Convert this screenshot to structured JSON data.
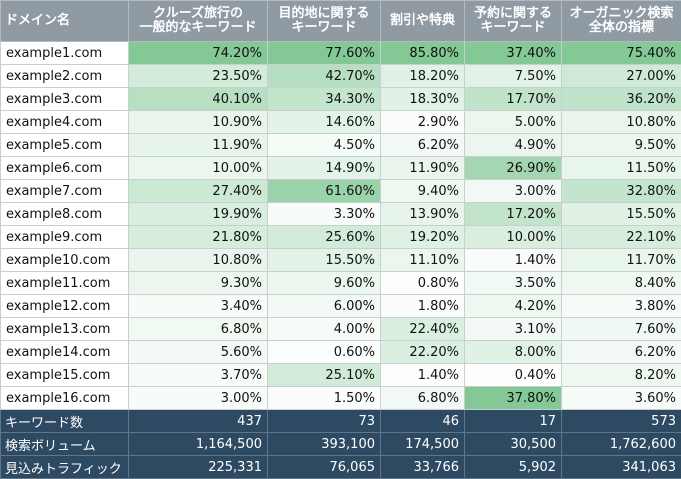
{
  "headers": [
    {
      "line1": "ドメイン名",
      "line2": ""
    },
    {
      "line1": "クルーズ旅行の",
      "line2": "一般的なキーワード"
    },
    {
      "line1": "目的地に関する",
      "line2": "キーワード"
    },
    {
      "line1": "割引や特典",
      "line2": ""
    },
    {
      "line1": "予約に関する",
      "line2": "キーワード"
    },
    {
      "line1": "オーガニック検索",
      "line2": "全体の指標"
    }
  ],
  "rows": [
    {
      "domain": "example1.com",
      "values": [
        "74.20%",
        "77.60%",
        "85.80%",
        "37.40%",
        "75.40%"
      ]
    },
    {
      "domain": "example2.com",
      "values": [
        "23.50%",
        "42.70%",
        "18.20%",
        "7.50%",
        "27.00%"
      ]
    },
    {
      "domain": "example3.com",
      "values": [
        "40.10%",
        "34.30%",
        "18.30%",
        "17.70%",
        "36.20%"
      ]
    },
    {
      "domain": "example4.com",
      "values": [
        "10.90%",
        "14.60%",
        "2.90%",
        "5.00%",
        "10.80%"
      ]
    },
    {
      "domain": "example5.com",
      "values": [
        "11.90%",
        "4.50%",
        "6.20%",
        "4.90%",
        "9.50%"
      ]
    },
    {
      "domain": "example6.com",
      "values": [
        "10.00%",
        "14.90%",
        "11.90%",
        "26.90%",
        "11.50%"
      ]
    },
    {
      "domain": "example7.com",
      "values": [
        "27.40%",
        "61.60%",
        "9.40%",
        "3.00%",
        "32.80%"
      ]
    },
    {
      "domain": "example8.com",
      "values": [
        "19.90%",
        "3.30%",
        "13.90%",
        "17.20%",
        "15.50%"
      ]
    },
    {
      "domain": "example9.com",
      "values": [
        "21.80%",
        "25.60%",
        "19.20%",
        "10.00%",
        "22.10%"
      ]
    },
    {
      "domain": "example10.com",
      "values": [
        "10.80%",
        "15.50%",
        "11.10%",
        "1.40%",
        "11.70%"
      ]
    },
    {
      "domain": "example11.com",
      "values": [
        "9.30%",
        "9.60%",
        "0.80%",
        "3.50%",
        "8.40%"
      ]
    },
    {
      "domain": "example12.com",
      "values": [
        "3.40%",
        "6.00%",
        "1.80%",
        "4.20%",
        "3.80%"
      ]
    },
    {
      "domain": "example13.com",
      "values": [
        "6.80%",
        "4.00%",
        "22.40%",
        "3.10%",
        "7.60%"
      ]
    },
    {
      "domain": "example14.com",
      "values": [
        "5.60%",
        "0.60%",
        "22.20%",
        "8.00%",
        "6.20%"
      ]
    },
    {
      "domain": "example15.com",
      "values": [
        "3.70%",
        "25.10%",
        "1.40%",
        "0.40%",
        "8.20%"
      ]
    },
    {
      "domain": "example16.com",
      "values": [
        "3.00%",
        "1.50%",
        "6.80%",
        "37.80%",
        "3.60%"
      ]
    }
  ],
  "footer": [
    {
      "label": "キーワード数",
      "values": [
        "437",
        "73",
        "46",
        "17",
        "573"
      ]
    },
    {
      "label": "検索ボリューム",
      "values": [
        "1,164,500",
        "393,100",
        "174,500",
        "30,500",
        "1,762,600"
      ]
    },
    {
      "label": "見込みトラフィック",
      "values": [
        "225,331",
        "76,065",
        "33,766",
        "5,902",
        "341,063"
      ]
    }
  ],
  "colors": {
    "header_bg": "#8f9aa3",
    "footer_bg": "#2e4a63",
    "heat_max": "#7cc58f",
    "heat_min": "#ffffff"
  }
}
